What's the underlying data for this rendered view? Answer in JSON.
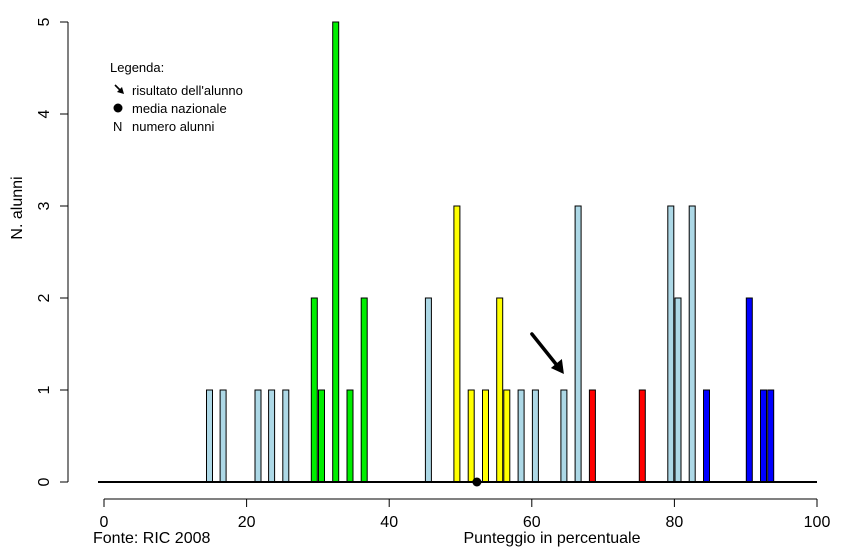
{
  "chart_data": {
    "type": "bar",
    "xlabel": "Punteggio in percentuale",
    "ylabel": "N. alunni",
    "xlim": [
      0,
      100
    ],
    "ylim": [
      0,
      5
    ],
    "x_ticks": [
      "0",
      "20",
      "40",
      "60",
      "80",
      "100"
    ],
    "y_ticks": [
      "0",
      "1",
      "2",
      "3",
      "4",
      "5"
    ],
    "source": "Fonte: RIC 2008",
    "legend": {
      "title": "Legenda:",
      "items": [
        {
          "symbol": "arrow-icon",
          "label": "risultato dell'alunno"
        },
        {
          "symbol": "dot-icon",
          "label": "media nazionale"
        },
        {
          "symbol": "N",
          "label": "numero alunni"
        }
      ]
    },
    "colors": {
      "lightblue": "#add8e6",
      "green": "#00ee00",
      "yellow": "#ffff00",
      "red": "#ff0000",
      "blue": "#0000ff"
    },
    "bars": [
      {
        "x": 14.8,
        "value": 1,
        "color": "lightblue"
      },
      {
        "x": 16.7,
        "value": 1,
        "color": "lightblue"
      },
      {
        "x": 21.6,
        "value": 1,
        "color": "lightblue"
      },
      {
        "x": 23.5,
        "value": 1,
        "color": "lightblue"
      },
      {
        "x": 25.5,
        "value": 1,
        "color": "lightblue"
      },
      {
        "x": 29.5,
        "value": 2,
        "color": "green"
      },
      {
        "x": 30.5,
        "value": 1,
        "color": "green"
      },
      {
        "x": 32.5,
        "value": 5,
        "color": "green"
      },
      {
        "x": 34.5,
        "value": 1,
        "color": "green"
      },
      {
        "x": 36.5,
        "value": 2,
        "color": "green"
      },
      {
        "x": 45.5,
        "value": 2,
        "color": "lightblue"
      },
      {
        "x": 49.5,
        "value": 3,
        "color": "yellow"
      },
      {
        "x": 51.5,
        "value": 1,
        "color": "yellow"
      },
      {
        "x": 53.5,
        "value": 1,
        "color": "yellow"
      },
      {
        "x": 55.5,
        "value": 2,
        "color": "yellow"
      },
      {
        "x": 56.5,
        "value": 1,
        "color": "yellow"
      },
      {
        "x": 58.5,
        "value": 1,
        "color": "lightblue"
      },
      {
        "x": 60.5,
        "value": 1,
        "color": "lightblue"
      },
      {
        "x": 64.5,
        "value": 1,
        "color": "lightblue"
      },
      {
        "x": 66.5,
        "value": 3,
        "color": "lightblue"
      },
      {
        "x": 68.5,
        "value": 1,
        "color": "red"
      },
      {
        "x": 75.5,
        "value": 1,
        "color": "red"
      },
      {
        "x": 79.5,
        "value": 3,
        "color": "lightblue"
      },
      {
        "x": 80.5,
        "value": 2,
        "color": "lightblue"
      },
      {
        "x": 82.5,
        "value": 3,
        "color": "lightblue"
      },
      {
        "x": 84.5,
        "value": 1,
        "color": "blue"
      },
      {
        "x": 90.5,
        "value": 2,
        "color": "blue"
      },
      {
        "x": 92.5,
        "value": 1,
        "color": "blue"
      },
      {
        "x": 93.5,
        "value": 1,
        "color": "blue"
      }
    ],
    "national_mean": 52.3,
    "student_result": 64.5
  }
}
